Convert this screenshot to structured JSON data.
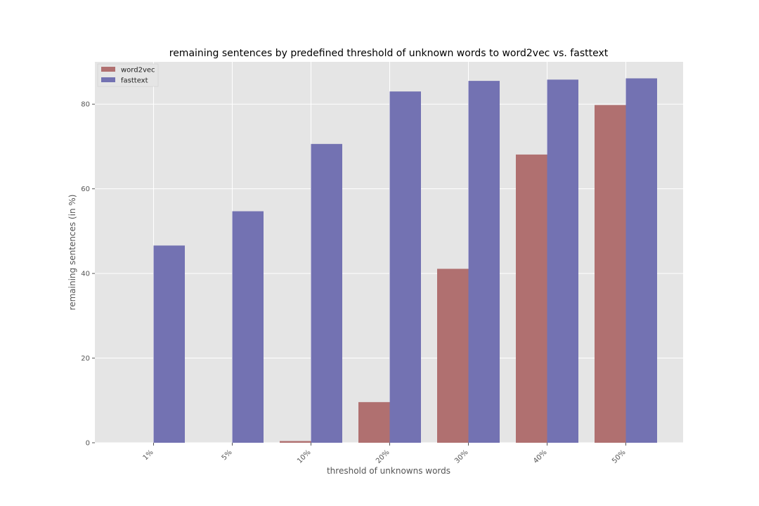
{
  "chart_data": {
    "type": "bar",
    "title": "remaining sentences by predefined threshold of unknown words to word2vec vs. fasttext",
    "xlabel": "threshold of unknowns words",
    "ylabel": "remaining sentences (in %)",
    "categories": [
      "1%",
      "5%",
      "10%",
      "20%",
      "30%",
      "40%",
      "50%"
    ],
    "series": [
      {
        "name": "word2vec",
        "color": "#b07070",
        "values": [
          0,
          0,
          0.4,
          9.6,
          41.1,
          68.1,
          79.8
        ]
      },
      {
        "name": "fasttext",
        "color": "#7372b2",
        "values": [
          46.6,
          54.7,
          70.6,
          83.0,
          85.5,
          85.8,
          86.1
        ]
      }
    ],
    "yticks": [
      0,
      20,
      40,
      60,
      80
    ],
    "ylim": [
      0,
      90
    ],
    "grid": true,
    "legend": "top-left",
    "background": "#e5e5e5"
  }
}
